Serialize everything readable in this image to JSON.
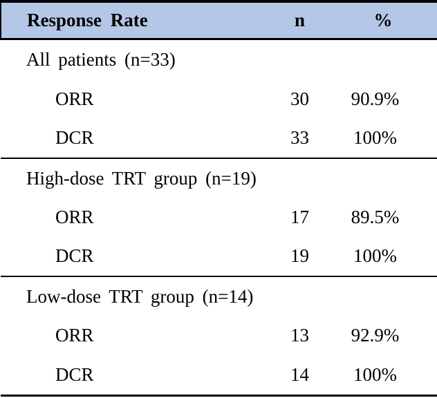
{
  "table": {
    "title_note": "response-rate-table",
    "header": {
      "col1": "Response Rate",
      "col2": "n",
      "col3": "%"
    },
    "header_bg_color": "#B4C7E7",
    "border_color": "#000000",
    "sections": [
      {
        "title": "All patients (n=33)",
        "rows": [
          {
            "label": "ORR",
            "n": "30",
            "pct": "90.9%"
          },
          {
            "label": "DCR",
            "n": "33",
            "pct": "100%"
          }
        ]
      },
      {
        "title": "High-dose TRT group (n=19)",
        "rows": [
          {
            "label": "ORR",
            "n": "17",
            "pct": "89.5%"
          },
          {
            "label": "DCR",
            "n": "19",
            "pct": "100%"
          }
        ]
      },
      {
        "title": "Low-dose TRT group (n=14)",
        "rows": [
          {
            "label": "ORR",
            "n": "13",
            "pct": "92.9%"
          },
          {
            "label": "DCR",
            "n": "14",
            "pct": "100%"
          }
        ]
      }
    ]
  }
}
